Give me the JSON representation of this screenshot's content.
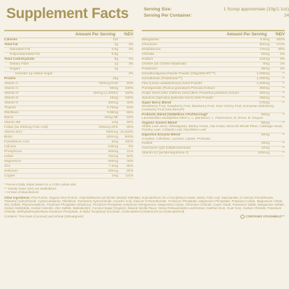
{
  "header": {
    "title": "Supplement Facts",
    "serving_size_label": "Serving Size:",
    "serving_size_value": "1 Scoop approximate (33g/1.1oz)",
    "servings_label": "Serving Per Container:",
    "servings_value": "24"
  },
  "left": {
    "col_amount": "Amount Per Serving",
    "col_dv": "%DV",
    "rows": [
      {
        "name": "Calories",
        "amount": "110",
        "dv": "",
        "indent": 0
      },
      {
        "name": "Total Fat",
        "amount": "2g",
        "dv": "3%",
        "indent": 0
      },
      {
        "name": "Saturated Fat",
        "amount": "0.5g",
        "dv": "2%",
        "indent": 1
      },
      {
        "name": "Polyunsaturated Fat",
        "amount": "0.5g",
        "dv": "",
        "indent": 1
      },
      {
        "name": "Total Carbohydrate",
        "amount": "6g",
        "dv": "2%",
        "indent": 0
      },
      {
        "name": "Dietary Fiber",
        "amount": "1g",
        "dv": "3%",
        "indent": 1
      },
      {
        "name": "Sugars",
        "amount": "1g",
        "dv": "",
        "indent": 1
      },
      {
        "name": "Includes 1g Added Sugar",
        "amount": "",
        "dv": "2%",
        "indent": 2
      },
      {
        "name": "Protein",
        "amount": "18g",
        "dv": "",
        "indent": 0
      },
      {
        "name": "Vitamin A",
        "amount": "750mcg RAE",
        "dv": "83%",
        "indent": 0
      },
      {
        "name": "Vitamin C",
        "amount": "90mg",
        "dv": "100%",
        "indent": 0
      },
      {
        "name": "Vitamin D",
        "amount": "30mcg (1,200IU)",
        "dv": "150%",
        "indent": 0
      },
      {
        "name": "Vitamin E",
        "amount": "15mg",
        "dv": "100%",
        "indent": 0
      },
      {
        "name": "Vitamin K",
        "amount": "40mcg",
        "dv": "33%",
        "indent": 0
      },
      {
        "name": "Thiamin",
        "amount": "0.75mg",
        "dv": "63%",
        "indent": 0
      },
      {
        "name": "Riboflavin",
        "amount": "0.85mg",
        "dv": "65%",
        "indent": 0
      },
      {
        "name": "Niacin",
        "amount": "10mg NE",
        "dv": "63%",
        "indent": 0
      },
      {
        "name": "Vitamin B6",
        "amount": "1mg",
        "dv": "59%",
        "indent": 0
      },
      {
        "name": "Folate (as 200mcg Folic Acid)",
        "amount": "340mcg DFE",
        "dv": "85%",
        "indent": 0
      },
      {
        "name": "Vitamin B12",
        "amount": "500mcg",
        "dv": "20,833%",
        "indent": 0
      },
      {
        "name": "Biotin",
        "amount": "150mcg",
        "dv": "500%",
        "indent": 0
      },
      {
        "name": "Pantothenic Acid",
        "amount": "5mg",
        "dv": "100%",
        "indent": 0
      },
      {
        "name": "Calcium",
        "amount": "100mg",
        "dv": "8%",
        "indent": 0
      },
      {
        "name": "Phosphorus",
        "amount": "260mg",
        "dv": "21%",
        "indent": 0
      },
      {
        "name": "Iodine",
        "amount": "75mcg",
        "dv": "50%",
        "indent": 0
      },
      {
        "name": "Magnesium",
        "amount": "200mg",
        "dv": "48%",
        "indent": 0
      },
      {
        "name": "Zinc",
        "amount": "7.5mg",
        "dv": "68%",
        "indent": 0
      },
      {
        "name": "Selenium",
        "amount": "30mcg",
        "dv": "55%",
        "indent": 0
      },
      {
        "name": "Copper",
        "amount": "1mg",
        "dv": "111%",
        "indent": 0
      }
    ]
  },
  "right": {
    "col_amount": "Amount Per Serving",
    "col_dv": "%DV",
    "rows": [
      {
        "name": "Manganese",
        "amount": "6.5mg",
        "dv": "282%"
      },
      {
        "name": "Chromium",
        "amount": "60mcg",
        "dv": "171%"
      },
      {
        "name": "Molybdenum",
        "amount": "17mcg",
        "dv": "38%"
      },
      {
        "name": "Chloride",
        "amount": "60mg",
        "dv": "2%"
      },
      {
        "name": "Sodium",
        "amount": "210mg",
        "dv": "9%"
      },
      {
        "name": "Choline (as Choline Bitartrate)",
        "amount": "8mg",
        "dv": "1%"
      },
      {
        "name": "Potassium",
        "amount": "85mg",
        "dv": "2%"
      },
      {
        "name": "Isomaltooligosaccharide Powder (OligoSMART™)",
        "amount": "1,000mg",
        "dv": "**"
      },
      {
        "name": "Isomaltulose (Palatinose™)",
        "amount": "1,000mg",
        "dv": "**"
      },
      {
        "name": "Flax (Linum usitatissimum) Seed Powder",
        "amount": "1,000mg",
        "dv": "**"
      },
      {
        "name": "Pomegranate (Punica granatum) Pericarp Extract",
        "amount": "350mg",
        "dv": "**"
      },
      {
        "name": "Grape Seed (Vitis vinifera) Seed (95% Proanthocyanidins) Extract",
        "amount": "350mg",
        "dv": "**"
      },
      {
        "name": "Spirulina (Spirulina platensis GenI) Herb Powder",
        "amount": "250mg",
        "dv": "**"
      }
    ],
    "blends": [
      {
        "name": "Super Berry Blend",
        "amount": "170mg",
        "dv": "**",
        "desc": "Strawberry Fruit, Raspberry Fruit, Blueberry Fruit, Sour Cherry Fruit, European Elderberry, Cranberry Fruit (Vita Berry®)"
      },
      {
        "name": "Probiotic Blend (150Million CFU/Serving)*",
        "amount": "50mg",
        "dv": "**",
        "desc": "Lactobacillus acidophilus DDS-1, L. plantarum, L. rhamnosus, B. breve, B. longum"
      },
      {
        "name": "Organic Greens Blend",
        "amount": "50mg",
        "dv": "**",
        "desc": "Alfalfa Leaf Juice, Wheatgrass, Barley Grass, Oat Grass, Broccoli Whole Plant, Cabbage Head, Parsley Leaf, Collards Leaf, Dandelion Leaf"
      },
      {
        "name": "Digestive Enzyme Blend",
        "amount": "20mg",
        "dv": "**",
        "desc": "Amylase, Cellulase, Lactase, Lipase, Protease"
      }
    ],
    "tail_rows": [
      {
        "name": "Inositol",
        "amount": "20mg",
        "dv": "**"
      },
      {
        "name": "Coenzyme Q10 (Ubidecarenone)",
        "amount": "10mg",
        "dv": "**"
      },
      {
        "name": "Vitamin K2 (as Menaquinone-7)",
        "amount": "100mcg",
        "dv": "**"
      }
    ]
  },
  "notes": [
    "* Percent Daily Value based on a 2,000 calorie diet",
    "** %Daily Value (DV) not established",
    "+ At time of Manufacture"
  ],
  "ingredients_label": "Other Ingredients:",
  "ingredients": "Pea Protein, Organic Rice Protein, Vitamin/Mineral Lief 50 Mix (Retinyl Palmitate, Ergocalciferol, DL-α-Tocopheryl Acetate, Biotin, Folic Acid, Niacinamide, D-Calcium Pantothenate, Thiamine Hydrochloride, Cyanocobalamin, Riboflavin, Pyridoxine Hydrochloride, Ascorbic Acid, Calcium D-Pantothenate, Tricalcium Phosphate, Magnesium Phosphate, Potassium Iodide, Magnesium Citrate, Zinc Sulfate, Phytomenadione, Tricalcium Phosphate Anhydrous, Tricalcium Phosphate Anhydrous Strengmenon, Magnesium Citrate, Chromium Chloride, Cupric Oxide, Potassium Iodide, Manganese Sulfate, Sodium Molybdate, Sodium Selenite, Zinc Sulfate, Maltodextrin), Coconut Sugar (Organic), Natural Vanilla Flavor, Stevia Rebaudiosides Leaf Extract, Xanthan Gum, Guar Gum, Sodium Chloride, Potassium Chloride, Methylsulfonylmethane Dicalcium Phosphate, d-Alpha Tocopheryl Succinate, Cholecalciferol (Vitamin D3 as Cholecalciferol)",
  "footer": {
    "allergen": "Contains: Tree Nuts (Coconut) and Wheat (Wheatgrass)",
    "badge": "CONTAINS VITASHIELD™"
  }
}
